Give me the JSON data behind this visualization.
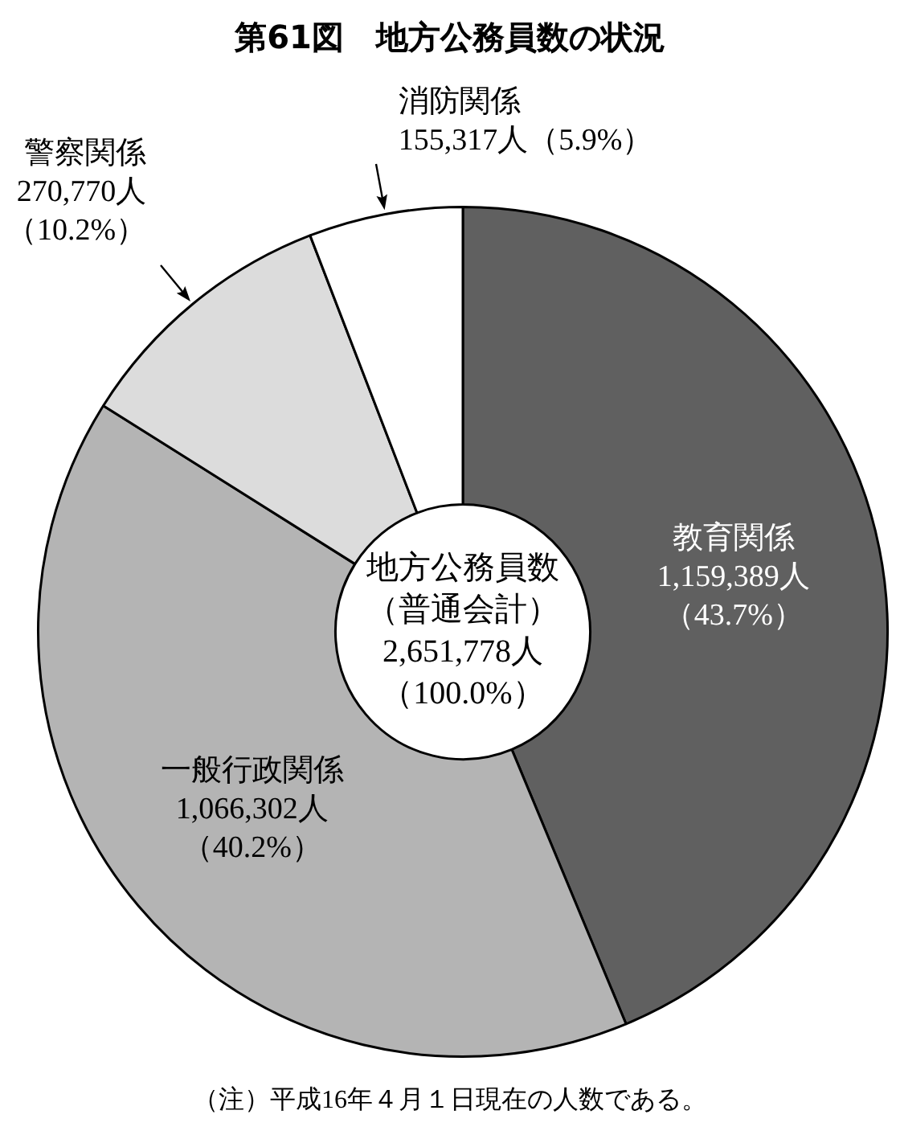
{
  "chart_data": {
    "type": "donut",
    "title": "第61図　地方公務員数の状況",
    "categories": [
      "教育関係",
      "一般行政関係",
      "警察関係",
      "消防関係"
    ],
    "values": [
      1159389,
      1066302,
      270770,
      155317
    ],
    "colors": [
      "#606060",
      "#b4b4b4",
      "#dcdcdc",
      "#ffffff"
    ],
    "value_labels": [
      "1,159,389人（43.7%）",
      "1,066,302人（40.2%）",
      "270,770人（10.2%）",
      "155,317人（5.9%）"
    ],
    "legend": false,
    "annotations": [
      "地方公務員数（普通会計）2,651,778人（100.0%）",
      "（注）平成16年４月１日現在の人数である。"
    ]
  }
}
